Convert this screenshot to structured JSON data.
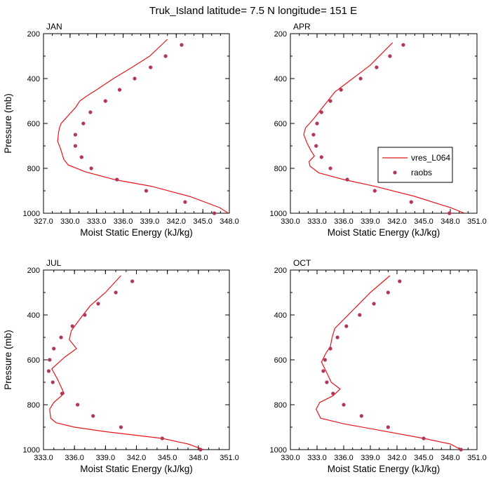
{
  "main_title": "Truk_Island  latitude= 7.5 N longitude= 151 E",
  "colors": {
    "model": "#e8161b",
    "obs": "#b0365a"
  },
  "chart_data": [
    {
      "type": "line",
      "title": "JAN",
      "xlabel": "Moist Static Energy (kJ/kg)",
      "ylabel": "Pressure (mb)",
      "xlim": [
        327,
        348
      ],
      "ylim": [
        1000,
        200
      ],
      "xticks": [
        327.0,
        330.0,
        333.0,
        336.0,
        339.0,
        342.0,
        345.0,
        348.0
      ],
      "xtick_labels": [
        "327.0",
        "330.0",
        "333.0",
        "336.0",
        "339.0",
        "342.0",
        "345.0",
        "348.0"
      ],
      "yticks": [
        200,
        400,
        600,
        800,
        1000
      ],
      "ytick_labels": [
        "200",
        "400",
        "600",
        "800",
        "1000"
      ],
      "series": [
        {
          "name": "vres_L064",
          "style": "line",
          "x": [
            347.9,
            346.9,
            343.5,
            339.2,
            335.0,
            331.7,
            329.8,
            329.3,
            328.9,
            328.6,
            328.7,
            328.8,
            329.0,
            329.9,
            330.6,
            331.1,
            331.8,
            333.0,
            334.9,
            337.0,
            339.0,
            341.0
          ],
          "y": [
            1000,
            975,
            925,
            880,
            850,
            815,
            785,
            760,
            710,
            680,
            640,
            620,
            600,
            560,
            530,
            500,
            480,
            450,
            400,
            350,
            300,
            225
          ]
        },
        {
          "name": "raobs",
          "style": "scatter",
          "x": [
            346.3,
            343.0,
            338.6,
            335.3,
            332.4,
            331.3,
            330.6,
            330.6,
            331.5,
            332.3,
            334.0,
            335.6,
            337.3,
            339.1,
            340.8,
            342.6
          ],
          "y": [
            1000,
            950,
            900,
            850,
            800,
            750,
            700,
            650,
            600,
            550,
            500,
            450,
            400,
            350,
            300,
            250
          ]
        }
      ]
    },
    {
      "type": "line",
      "title": "APR",
      "xlabel": "Moist Static Energy (kJ/kg)",
      "ylabel": "",
      "xlim": [
        330,
        351
      ],
      "ylim": [
        1000,
        200
      ],
      "xticks": [
        330.0,
        333.0,
        336.0,
        339.0,
        342.0,
        345.0,
        348.0,
        351.0
      ],
      "xtick_labels": [
        "330.0",
        "333.0",
        "336.0",
        "339.0",
        "342.0",
        "345.0",
        "348.0",
        "351.0"
      ],
      "yticks": [
        200,
        400,
        600,
        800,
        1000
      ],
      "ytick_labels": [
        "200",
        "400",
        "600",
        "800",
        "1000"
      ],
      "legend": {
        "position": "right-middle"
      },
      "series": [
        {
          "name": "vres_L064",
          "style": "line",
          "x": [
            349.6,
            348.0,
            344.0,
            339.5,
            336.0,
            333.2,
            332.2,
            332.1,
            332.7,
            332.3,
            331.9,
            331.5,
            331.7,
            332.6,
            333.2,
            333.8,
            334.2,
            335.0,
            337.0,
            339.0,
            341.5
          ],
          "y": [
            1000,
            975,
            925,
            880,
            850,
            820,
            790,
            770,
            745,
            720,
            690,
            650,
            620,
            580,
            550,
            520,
            500,
            460,
            400,
            340,
            240
          ]
        },
        {
          "name": "raobs",
          "style": "scatter",
          "x": [
            347.9,
            343.6,
            339.5,
            336.4,
            334.5,
            333.5,
            332.9,
            332.6,
            333.0,
            333.5,
            334.5,
            335.7,
            337.9,
            339.7,
            341.2,
            342.7
          ],
          "y": [
            1000,
            950,
            900,
            850,
            800,
            750,
            700,
            650,
            600,
            550,
            500,
            450,
            400,
            350,
            300,
            250
          ]
        }
      ]
    },
    {
      "type": "line",
      "title": "JUL",
      "xlabel": "Moist Static Energy (kJ/kg)",
      "ylabel": "Pressure (mb)",
      "xlim": [
        333,
        351
      ],
      "ylim": [
        1000,
        200
      ],
      "xticks": [
        333.0,
        336.0,
        339.0,
        342.0,
        345.0,
        348.0,
        351.0
      ],
      "xtick_labels": [
        "333.0",
        "336.0",
        "339.0",
        "342.0",
        "345.0",
        "348.0",
        "351.0"
      ],
      "yticks": [
        200,
        400,
        600,
        800,
        1000
      ],
      "ytick_labels": [
        "200",
        "400",
        "600",
        "800",
        "1000"
      ],
      "series": [
        {
          "name": "vres_L064",
          "style": "line",
          "x": [
            348.5,
            347.0,
            344.5,
            339.0,
            336.0,
            334.2,
            333.7,
            333.6,
            334.0,
            335.0,
            334.4,
            333.8,
            335.0,
            336.2,
            335.5,
            335.7,
            336.5,
            337.5,
            339.0,
            340.5
          ],
          "y": [
            1000,
            975,
            950,
            920,
            900,
            880,
            860,
            820,
            790,
            750,
            690,
            640,
            590,
            550,
            510,
            470,
            420,
            360,
            300,
            225
          ]
        },
        {
          "name": "raobs",
          "style": "scatter",
          "x": [
            348.2,
            344.5,
            340.5,
            337.8,
            336.3,
            334.8,
            333.9,
            333.5,
            333.6,
            334.0,
            334.7,
            335.8,
            337.0,
            338.3,
            340.0,
            341.6
          ],
          "y": [
            1000,
            950,
            900,
            850,
            800,
            750,
            700,
            650,
            600,
            550,
            500,
            450,
            400,
            350,
            300,
            250
          ]
        }
      ]
    },
    {
      "type": "line",
      "title": "OCT",
      "xlabel": "Moist Static Energy (kJ/kg)",
      "ylabel": "",
      "xlim": [
        330,
        351
      ],
      "ylim": [
        1000,
        200
      ],
      "xticks": [
        330.0,
        333.0,
        336.0,
        339.0,
        342.0,
        345.0,
        348.0,
        351.0
      ],
      "xtick_labels": [
        "330.0",
        "333.0",
        "336.0",
        "339.0",
        "342.0",
        "345.0",
        "348.0",
        "351.0"
      ],
      "yticks": [
        200,
        400,
        600,
        800,
        1000
      ],
      "ytick_labels": [
        "200",
        "400",
        "600",
        "800",
        "1000"
      ],
      "series": [
        {
          "name": "vres_L064",
          "style": "line",
          "x": [
            349.2,
            348.0,
            345.0,
            339.5,
            336.0,
            333.4,
            332.9,
            333.3,
            334.8,
            335.6,
            334.6,
            334.0,
            333.5,
            334.0,
            334.5,
            334.7,
            335.0,
            336.0,
            337.5,
            339.0,
            341.2
          ],
          "y": [
            1000,
            975,
            950,
            910,
            885,
            860,
            820,
            790,
            760,
            730,
            700,
            650,
            610,
            570,
            540,
            500,
            460,
            420,
            360,
            300,
            225
          ]
        },
        {
          "name": "raobs",
          "style": "scatter",
          "x": [
            349.2,
            345.0,
            341.0,
            338.0,
            336.0,
            334.8,
            334.1,
            333.7,
            333.9,
            334.5,
            335.3,
            336.3,
            337.8,
            339.4,
            341.0,
            342.3
          ],
          "y": [
            1000,
            950,
            900,
            850,
            800,
            750,
            700,
            650,
            600,
            550,
            500,
            450,
            400,
            350,
            300,
            250
          ]
        }
      ]
    }
  ]
}
